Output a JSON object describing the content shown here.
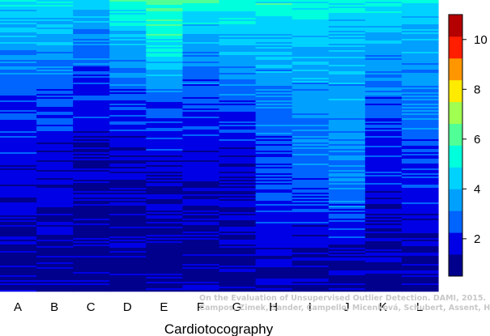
{
  "chart_data": {
    "type": "heatmap",
    "title": "",
    "xlabel": "Cardiotocography",
    "ylabel": "",
    "categories": [
      "A",
      "B",
      "C",
      "D",
      "E",
      "F",
      "G",
      "H",
      "I",
      "J",
      "K",
      "L"
    ],
    "column_profiles": [
      {
        "name": "A",
        "stops": [
          [
            0,
            4.8
          ],
          [
            0.05,
            4.1
          ],
          [
            0.12,
            3.8
          ],
          [
            0.25,
            2.8
          ],
          [
            0.45,
            2.0
          ],
          [
            0.65,
            1.6
          ],
          [
            0.85,
            1.2
          ],
          [
            1,
            1.0
          ]
        ]
      },
      {
        "name": "B",
        "stops": [
          [
            0,
            4.8
          ],
          [
            0.05,
            4.3
          ],
          [
            0.15,
            3.7
          ],
          [
            0.28,
            2.5
          ],
          [
            0.5,
            1.8
          ],
          [
            0.7,
            1.4
          ],
          [
            0.85,
            1.1
          ],
          [
            1,
            1.0
          ]
        ]
      },
      {
        "name": "C",
        "stops": [
          [
            0,
            4.7
          ],
          [
            0.05,
            4.0
          ],
          [
            0.15,
            3.1
          ],
          [
            0.3,
            2.1
          ],
          [
            0.5,
            1.5
          ],
          [
            0.7,
            1.1
          ],
          [
            1,
            1.0
          ]
        ]
      },
      {
        "name": "D",
        "stops": [
          [
            0,
            5.5
          ],
          [
            0.08,
            4.6
          ],
          [
            0.2,
            3.4
          ],
          [
            0.35,
            2.1
          ],
          [
            0.55,
            1.5
          ],
          [
            0.75,
            1.1
          ],
          [
            1,
            1.0
          ]
        ]
      },
      {
        "name": "E",
        "stops": [
          [
            0,
            5.9
          ],
          [
            0.12,
            5.4
          ],
          [
            0.22,
            4.3
          ],
          [
            0.3,
            3.2
          ],
          [
            0.45,
            2.0
          ],
          [
            0.65,
            1.3
          ],
          [
            1,
            1.0
          ]
        ]
      },
      {
        "name": "F",
        "stops": [
          [
            0,
            5.4
          ],
          [
            0.06,
            4.6
          ],
          [
            0.15,
            3.6
          ],
          [
            0.3,
            2.5
          ],
          [
            0.5,
            1.8
          ],
          [
            0.7,
            1.3
          ],
          [
            0.9,
            1.1
          ],
          [
            1,
            1.0
          ]
        ]
      },
      {
        "name": "G",
        "stops": [
          [
            0,
            5.3
          ],
          [
            0.08,
            4.6
          ],
          [
            0.2,
            3.6
          ],
          [
            0.35,
            2.5
          ],
          [
            0.5,
            1.8
          ],
          [
            0.7,
            1.3
          ],
          [
            0.9,
            1.1
          ],
          [
            1,
            1.0
          ]
        ]
      },
      {
        "name": "H",
        "stops": [
          [
            0,
            5.4
          ],
          [
            0.1,
            4.4
          ],
          [
            0.25,
            3.5
          ],
          [
            0.45,
            2.7
          ],
          [
            0.65,
            2.2
          ],
          [
            0.8,
            1.8
          ],
          [
            0.92,
            1.5
          ],
          [
            1,
            1.2
          ]
        ]
      },
      {
        "name": "I",
        "stops": [
          [
            0,
            5.2
          ],
          [
            0.1,
            4.3
          ],
          [
            0.3,
            3.6
          ],
          [
            0.5,
            3.0
          ],
          [
            0.65,
            2.5
          ],
          [
            0.8,
            1.7
          ],
          [
            0.92,
            1.2
          ],
          [
            1,
            1.0
          ]
        ]
      },
      {
        "name": "J",
        "stops": [
          [
            0,
            5.0
          ],
          [
            0.1,
            4.2
          ],
          [
            0.3,
            3.6
          ],
          [
            0.5,
            3.3
          ],
          [
            0.65,
            3.0
          ],
          [
            0.8,
            2.0
          ],
          [
            0.92,
            1.2
          ],
          [
            1,
            1.0
          ]
        ]
      },
      {
        "name": "K",
        "stops": [
          [
            0,
            4.9
          ],
          [
            0.08,
            4.2
          ],
          [
            0.2,
            3.4
          ],
          [
            0.4,
            2.4
          ],
          [
            0.6,
            1.8
          ],
          [
            0.8,
            1.3
          ],
          [
            1,
            1.0
          ]
        ]
      },
      {
        "name": "L",
        "stops": [
          [
            0,
            4.8
          ],
          [
            0.08,
            4.2
          ],
          [
            0.2,
            3.6
          ],
          [
            0.4,
            2.8
          ],
          [
            0.6,
            2.1
          ],
          [
            0.8,
            1.4
          ],
          [
            1,
            1.0
          ]
        ]
      }
    ],
    "colorbar": {
      "min": 0.5,
      "max": 11,
      "ticks": [
        2,
        4,
        6,
        8,
        10
      ],
      "colors": [
        "#00008c",
        "#0000e6",
        "#0064ff",
        "#00a0ff",
        "#00d2ff",
        "#00ffdc",
        "#50ff96",
        "#a0ff50",
        "#ffeb00",
        "#ff9600",
        "#ff1e00",
        "#b40000"
      ]
    }
  },
  "watermark": {
    "line1": "On the Evaluation of Unsupervised Outlier Detection. DAMI, 2015.",
    "line2": "Campos, Zimek, Sander, Campello, Micenková, Schubert, Assent, Houle"
  }
}
